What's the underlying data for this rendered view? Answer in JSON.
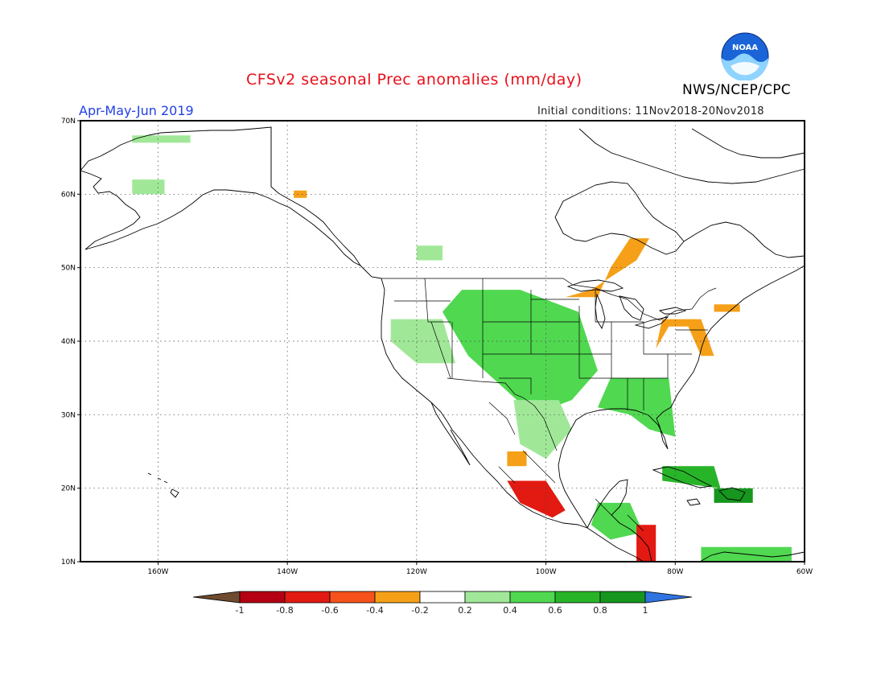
{
  "title": "CFSv2 seasonal Prec anomalies (mm/day)",
  "season": "Apr-May-Jun 2019",
  "initial_conditions": "Initial conditions: 11Nov2018-20Nov2018",
  "agency": "NWS/NCEP/CPC",
  "logo_text": "NOAA",
  "map": {
    "lon_range": [
      -172,
      -60
    ],
    "lat_range": [
      10,
      70
    ],
    "lat_ticks": [
      {
        "value": 70,
        "label": "70N"
      },
      {
        "value": 60,
        "label": "60N"
      },
      {
        "value": 50,
        "label": "50N"
      },
      {
        "value": 40,
        "label": "40N"
      },
      {
        "value": 30,
        "label": "30N"
      },
      {
        "value": 20,
        "label": "20N"
      },
      {
        "value": 10,
        "label": "10N"
      }
    ],
    "lon_ticks": [
      {
        "value": -160,
        "label": "160W"
      },
      {
        "value": -140,
        "label": "140W"
      },
      {
        "value": -120,
        "label": "120W"
      },
      {
        "value": -100,
        "label": "100W"
      },
      {
        "value": -80,
        "label": "80W"
      },
      {
        "value": -60,
        "label": "60W"
      }
    ],
    "grid": "dotted"
  },
  "colorbar": {
    "labels": [
      "-1",
      "-0.8",
      "-0.6",
      "-0.4",
      "-0.2",
      "0.2",
      "0.4",
      "0.6",
      "0.8",
      "1"
    ],
    "colors": [
      "#6e4a2e",
      "#b40012",
      "#e21a12",
      "#f5521c",
      "#f5a018",
      "#ffffff",
      "#a0e898",
      "#50d850",
      "#28b428",
      "#16961e",
      "#2f74e0"
    ]
  },
  "anomaly_regions": [
    {
      "name": "alaska-wet",
      "sign": "wet",
      "level": 0.3,
      "area": [
        [
          -164,
          67
        ],
        [
          -155,
          67
        ],
        [
          -155,
          68
        ],
        [
          -164,
          68
        ]
      ]
    },
    {
      "name": "western-alaska-wet",
      "sign": "wet",
      "level": 0.3,
      "area": [
        [
          -164,
          60
        ],
        [
          -159,
          60
        ],
        [
          -159,
          62
        ],
        [
          -164,
          62
        ]
      ]
    },
    {
      "name": "se-alaska-dry",
      "sign": "dry",
      "level": -0.3,
      "area": [
        [
          -139,
          59.5
        ],
        [
          -137,
          59.5
        ],
        [
          -137,
          60.5
        ],
        [
          -139,
          60.5
        ]
      ]
    },
    {
      "name": "canada-wet",
      "sign": "wet",
      "level": 0.3,
      "area": [
        [
          -120,
          51
        ],
        [
          -116,
          51
        ],
        [
          -116,
          53
        ],
        [
          -120,
          53
        ]
      ]
    },
    {
      "name": "great-lakes-dry",
      "sign": "dry",
      "level": -0.3,
      "area": [
        [
          -97,
          46
        ],
        [
          -92,
          46
        ],
        [
          -90,
          50
        ],
        [
          -87,
          54
        ],
        [
          -84,
          54
        ],
        [
          -86,
          51
        ],
        [
          -93,
          47
        ]
      ]
    },
    {
      "name": "rockies-plains-wet",
      "sign": "wet",
      "level": 0.4,
      "area": [
        [
          -113,
          47
        ],
        [
          -104,
          47
        ],
        [
          -95,
          44
        ],
        [
          -92,
          36
        ],
        [
          -96,
          32
        ],
        [
          -102,
          30
        ],
        [
          -107,
          34
        ],
        [
          -112,
          38
        ],
        [
          -116,
          44
        ]
      ]
    },
    {
      "name": "southern-plains-wet",
      "sign": "wet",
      "level": 0.5,
      "area": [
        [
          -104,
          40
        ],
        [
          -99,
          40
        ],
        [
          -98,
          34
        ],
        [
          -103,
          34
        ]
      ]
    },
    {
      "name": "california-nevada-wet",
      "sign": "wet",
      "level": 0.3,
      "area": [
        [
          -124,
          43
        ],
        [
          -116,
          43
        ],
        [
          -114,
          37
        ],
        [
          -120,
          37
        ],
        [
          -124,
          40
        ]
      ]
    },
    {
      "name": "texas-wet",
      "sign": "wet",
      "level": 0.3,
      "area": [
        [
          -105,
          32
        ],
        [
          -98,
          32
        ],
        [
          -96,
          28
        ],
        [
          -100,
          24
        ],
        [
          -104,
          26
        ]
      ]
    },
    {
      "name": "southeast-wet",
      "sign": "wet",
      "level": 0.4,
      "area": [
        [
          -90,
          35
        ],
        [
          -81,
          35
        ],
        [
          -80,
          27
        ],
        [
          -84,
          28
        ],
        [
          -87,
          30
        ],
        [
          -92,
          31
        ]
      ]
    },
    {
      "name": "mid-atlantic-dry",
      "sign": "dry",
      "level": -0.3,
      "area": [
        [
          -81,
          42
        ],
        [
          -78,
          42
        ],
        [
          -76,
          38
        ],
        [
          -74,
          38
        ],
        [
          -76,
          43
        ],
        [
          -82,
          43
        ],
        [
          -83,
          39
        ]
      ]
    },
    {
      "name": "northeast-dry",
      "sign": "dry",
      "level": -0.3,
      "area": [
        [
          -74,
          44
        ],
        [
          -70,
          44
        ],
        [
          -70,
          45
        ],
        [
          -74,
          45
        ]
      ]
    },
    {
      "name": "mexico-dry",
      "sign": "dry",
      "level": -0.6,
      "area": [
        [
          -106,
          21
        ],
        [
          -100,
          21
        ],
        [
          -97,
          17
        ],
        [
          -99,
          16
        ],
        [
          -104,
          18
        ]
      ]
    },
    {
      "name": "baja-dry",
      "sign": "dry",
      "level": -0.3,
      "area": [
        [
          -106,
          25
        ],
        [
          -103,
          25
        ],
        [
          -103,
          23
        ],
        [
          -106,
          23
        ]
      ]
    },
    {
      "name": "central-america-wet",
      "sign": "wet",
      "level": 0.4,
      "area": [
        [
          -92,
          18
        ],
        [
          -87,
          18
        ],
        [
          -85,
          14
        ],
        [
          -90,
          13
        ],
        [
          -93,
          15
        ]
      ]
    },
    {
      "name": "costa-rica-dry",
      "sign": "dry",
      "level": -0.7,
      "area": [
        [
          -86,
          15
        ],
        [
          -83,
          15
        ],
        [
          -83,
          10
        ],
        [
          -86,
          10
        ]
      ]
    },
    {
      "name": "caribbean-wet",
      "sign": "wet",
      "level": 0.7,
      "area": [
        [
          -82,
          23
        ],
        [
          -74,
          23
        ],
        [
          -73,
          20
        ],
        [
          -82,
          21
        ]
      ]
    },
    {
      "name": "hispaniola-wet",
      "sign": "wet",
      "level": 0.8,
      "area": [
        [
          -74,
          20
        ],
        [
          -68,
          20
        ],
        [
          -68,
          18
        ],
        [
          -74,
          18
        ]
      ]
    },
    {
      "name": "south-caribbean-wet",
      "sign": "wet",
      "level": 0.5,
      "area": [
        [
          -76,
          12
        ],
        [
          -62,
          12
        ],
        [
          -62,
          10
        ],
        [
          -76,
          10
        ]
      ]
    }
  ]
}
